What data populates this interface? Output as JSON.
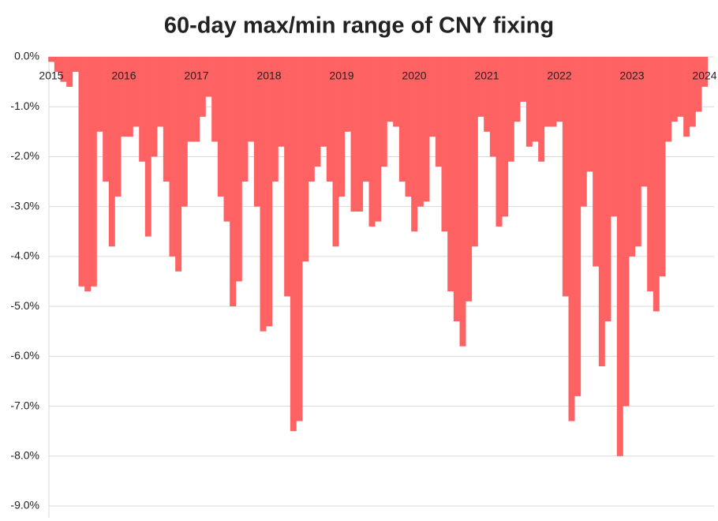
{
  "chart_data": {
    "type": "bar",
    "title": "60-day max/min range of CNY fixing",
    "categories": [
      "2015",
      null,
      null,
      null,
      null,
      null,
      null,
      null,
      null,
      null,
      null,
      null,
      "2016",
      null,
      null,
      null,
      null,
      null,
      null,
      null,
      null,
      null,
      null,
      null,
      "2017",
      null,
      null,
      null,
      null,
      null,
      null,
      null,
      null,
      null,
      null,
      null,
      "2018",
      null,
      null,
      null,
      null,
      null,
      null,
      null,
      null,
      null,
      null,
      null,
      "2019",
      null,
      null,
      null,
      null,
      null,
      null,
      null,
      null,
      null,
      null,
      null,
      "2020",
      null,
      null,
      null,
      null,
      null,
      null,
      null,
      null,
      null,
      null,
      null,
      "2021",
      null,
      null,
      null,
      null,
      null,
      null,
      null,
      null,
      null,
      null,
      null,
      "2022",
      null,
      null,
      null,
      null,
      null,
      null,
      null,
      null,
      null,
      null,
      null,
      "2023",
      null,
      null,
      null,
      null,
      null,
      null,
      null,
      null,
      null,
      null,
      null,
      "2024"
    ],
    "values": [
      -0.1,
      -0.3,
      -0.5,
      -0.6,
      -0.3,
      -4.6,
      -4.7,
      -4.6,
      -1.5,
      -2.5,
      -3.8,
      -2.8,
      -1.6,
      -1.6,
      -1.4,
      -2.1,
      -3.6,
      -2.0,
      -1.4,
      -2.5,
      -4.0,
      -4.3,
      -3.0,
      -1.7,
      -1.7,
      -1.2,
      -0.8,
      -1.7,
      -2.8,
      -3.3,
      -5.0,
      -4.5,
      -2.5,
      -1.7,
      -3.0,
      -5.5,
      -5.4,
      -2.5,
      -1.8,
      -4.8,
      -7.5,
      -7.3,
      -4.1,
      -2.5,
      -2.2,
      -1.8,
      -2.5,
      -3.8,
      -2.8,
      -1.5,
      -3.1,
      -3.1,
      -2.5,
      -3.4,
      -3.3,
      -2.2,
      -1.3,
      -1.4,
      -2.5,
      -2.8,
      -3.5,
      -3.0,
      -2.9,
      -1.6,
      -2.2,
      -3.5,
      -4.7,
      -5.3,
      -5.8,
      -4.9,
      -3.8,
      -1.2,
      -1.5,
      -2.0,
      -3.4,
      -3.2,
      -2.1,
      -1.3,
      -0.9,
      -1.8,
      -1.7,
      -2.1,
      -1.4,
      -1.4,
      -1.3,
      -4.8,
      -7.3,
      -6.8,
      -3.0,
      -2.3,
      -4.2,
      -6.2,
      -5.3,
      -3.2,
      -8.0,
      -7.0,
      -4.0,
      -3.8,
      -2.6,
      -4.7,
      -5.1,
      -4.4,
      -1.7,
      -1.3,
      -1.2,
      -1.6,
      -1.4,
      -1.1,
      -0.6
    ],
    "color": "#ff6262",
    "ylim": [
      -9,
      0
    ],
    "yticks": [
      {
        "value": 0,
        "label": "0.0%"
      },
      {
        "value": -1,
        "label": "-1.0%"
      },
      {
        "value": -2,
        "label": "-2.0%"
      },
      {
        "value": -3,
        "label": "-3.0%"
      },
      {
        "value": -4,
        "label": "-4.0%"
      },
      {
        "value": -5,
        "label": "-5.0%"
      },
      {
        "value": -6,
        "label": "-6.0%"
      },
      {
        "value": -7,
        "label": "-7.0%"
      },
      {
        "value": -8,
        "label": "-8.0%"
      },
      {
        "value": -9,
        "label": "-9.0%"
      }
    ],
    "grid": true
  }
}
